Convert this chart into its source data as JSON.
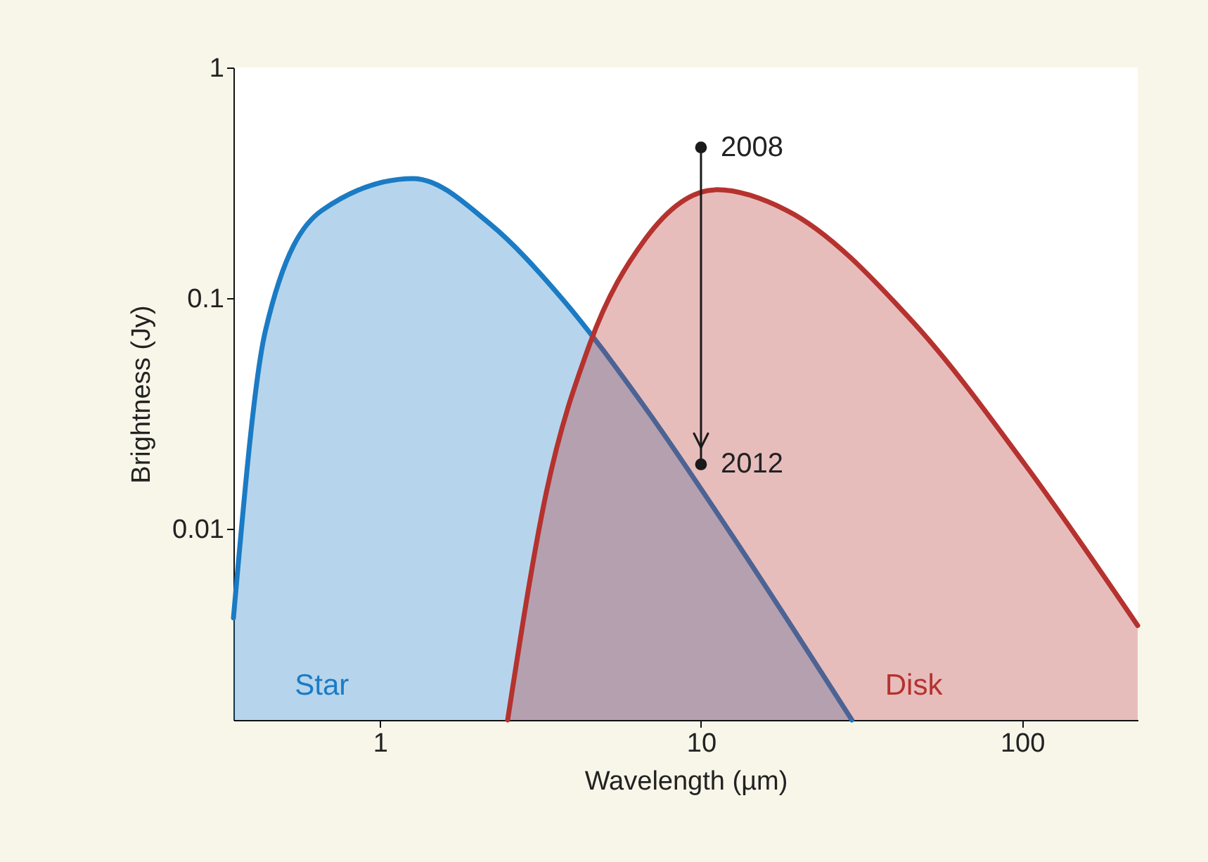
{
  "chart_data": {
    "type": "area",
    "xlabel": "Wavelength (µm)",
    "ylabel": "Brightness (Jy)",
    "log": "xy",
    "xlim": [
      0.35,
      229
    ],
    "ylim": [
      0.00148,
      1
    ],
    "xticks": [
      1,
      10,
      100
    ],
    "yticks": [
      0.01,
      0.1,
      1
    ],
    "grid": false,
    "legend": false,
    "series": [
      {
        "name": "Star",
        "color": "#1b7bc4",
        "x": [
          0.35,
          0.44,
          0.66,
          1.27,
          2.2,
          3.68,
          6.7,
          12.4,
          29.5
        ],
        "values": [
          0.0041,
          0.072,
          0.24,
          0.33,
          0.21,
          0.1,
          0.0335,
          0.0095,
          0.00148
        ]
      },
      {
        "name": "Disk",
        "color": "#b5322e",
        "x": [
          2.5,
          3.3,
          4.5,
          6.7,
          11.2,
          18.5,
          46,
          102,
          229
        ],
        "values": [
          0.00148,
          0.0144,
          0.063,
          0.18,
          0.295,
          0.24,
          0.078,
          0.019,
          0.0038
        ]
      },
      {
        "type": "scatter",
        "color": "#1a1a1a",
        "x": [
          10,
          10
        ],
        "values": [
          0.45,
          0.019
        ]
      }
    ],
    "annotations": [
      {
        "text": "2008",
        "x": 10,
        "y": 0.45
      },
      {
        "text": "2012",
        "x": 10,
        "y": 0.019
      }
    ]
  }
}
